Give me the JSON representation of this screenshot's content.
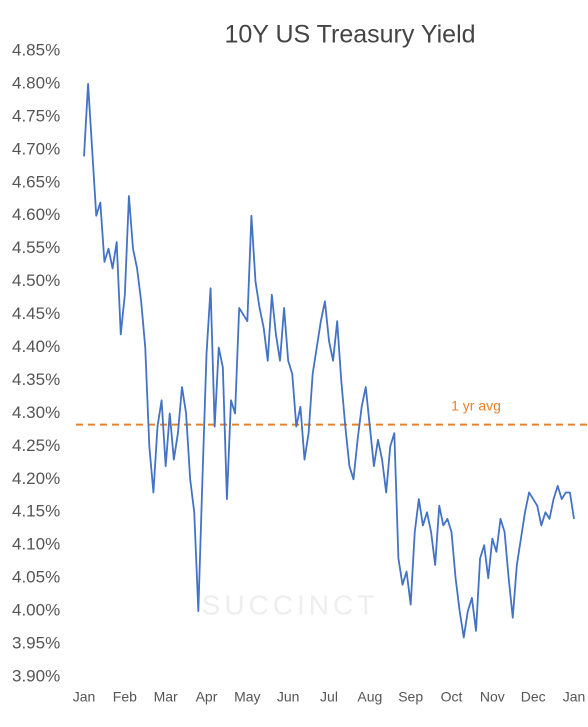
{
  "chart_data": {
    "type": "line",
    "title": "10Y US Treasury Yield",
    "watermark": "SUCCINCT",
    "categories": [
      "Jan",
      null,
      null,
      null,
      null,
      null,
      null,
      null,
      null,
      null,
      "Feb",
      null,
      null,
      null,
      null,
      null,
      null,
      null,
      null,
      null,
      "Mar",
      null,
      null,
      null,
      null,
      null,
      null,
      null,
      null,
      null,
      "Apr",
      null,
      null,
      null,
      null,
      null,
      null,
      null,
      null,
      null,
      "May",
      null,
      null,
      null,
      null,
      null,
      null,
      null,
      null,
      null,
      "Jun",
      null,
      null,
      null,
      null,
      null,
      null,
      null,
      null,
      null,
      "Jul",
      null,
      null,
      null,
      null,
      null,
      null,
      null,
      null,
      null,
      "Aug",
      null,
      null,
      null,
      null,
      null,
      null,
      null,
      null,
      null,
      "Sep",
      null,
      null,
      null,
      null,
      null,
      null,
      null,
      null,
      null,
      "Oct",
      null,
      null,
      null,
      null,
      null,
      null,
      null,
      null,
      null,
      "Nov",
      null,
      null,
      null,
      null,
      null,
      null,
      null,
      null,
      null,
      "Dec",
      null,
      null,
      null,
      null,
      null,
      null,
      null,
      null,
      null,
      "Jan"
    ],
    "series": [
      {
        "name": "10Y US Treasury Yield",
        "color": "#4472c4",
        "values": [
          4.69,
          4.8,
          4.7,
          4.6,
          4.62,
          4.53,
          4.55,
          4.52,
          4.56,
          4.42,
          4.48,
          4.63,
          4.55,
          4.52,
          4.47,
          4.4,
          4.25,
          4.18,
          4.28,
          4.32,
          4.22,
          4.3,
          4.23,
          4.27,
          4.34,
          4.3,
          4.2,
          4.15,
          4.0,
          4.2,
          4.39,
          4.49,
          4.28,
          4.4,
          4.37,
          4.17,
          4.32,
          4.3,
          4.46,
          4.45,
          4.44,
          4.6,
          4.5,
          4.46,
          4.43,
          4.38,
          4.48,
          4.42,
          4.38,
          4.46,
          4.38,
          4.36,
          4.28,
          4.31,
          4.23,
          4.27,
          4.36,
          4.4,
          4.44,
          4.47,
          4.41,
          4.38,
          4.44,
          4.35,
          4.28,
          4.22,
          4.2,
          4.26,
          4.31,
          4.34,
          4.28,
          4.22,
          4.26,
          4.23,
          4.18,
          4.25,
          4.27,
          4.08,
          4.04,
          4.06,
          4.01,
          4.12,
          4.17,
          4.13,
          4.15,
          4.12,
          4.07,
          4.16,
          4.13,
          4.14,
          4.12,
          4.05,
          4.0,
          3.96,
          4.0,
          4.02,
          3.97,
          4.08,
          4.1,
          4.05,
          4.11,
          4.09,
          4.14,
          4.12,
          4.05,
          3.99,
          4.07,
          4.11,
          4.15,
          4.18,
          4.17,
          4.16,
          4.13,
          4.15,
          4.14,
          4.17,
          4.19,
          4.17,
          4.18,
          4.18,
          4.14
        ]
      }
    ],
    "reference_line": {
      "label": "1 yr avg",
      "value": 4.283,
      "color": "#e8822a",
      "style": "dashed"
    },
    "ylim": [
      3.9,
      4.85
    ],
    "yticks": [
      {
        "value": 3.9,
        "label": "3.90%"
      },
      {
        "value": 3.95,
        "label": "3.95%"
      },
      {
        "value": 4.0,
        "label": "4.00%"
      },
      {
        "value": 4.05,
        "label": "4.05%"
      },
      {
        "value": 4.1,
        "label": "4.10%"
      },
      {
        "value": 4.15,
        "label": "4.15%"
      },
      {
        "value": 4.2,
        "label": "4.20%"
      },
      {
        "value": 4.25,
        "label": "4.25%"
      },
      {
        "value": 4.3,
        "label": "4.30%"
      },
      {
        "value": 4.35,
        "label": "4.35%"
      },
      {
        "value": 4.4,
        "label": "4.40%"
      },
      {
        "value": 4.45,
        "label": "4.45%"
      },
      {
        "value": 4.5,
        "label": "4.50%"
      },
      {
        "value": 4.55,
        "label": "4.55%"
      },
      {
        "value": 4.6,
        "label": "4.60%"
      },
      {
        "value": 4.65,
        "label": "4.65%"
      },
      {
        "value": 4.7,
        "label": "4.70%"
      },
      {
        "value": 4.75,
        "label": "4.75%"
      },
      {
        "value": 4.8,
        "label": "4.80%"
      },
      {
        "value": 4.85,
        "label": "4.85%"
      }
    ],
    "grid": false
  }
}
